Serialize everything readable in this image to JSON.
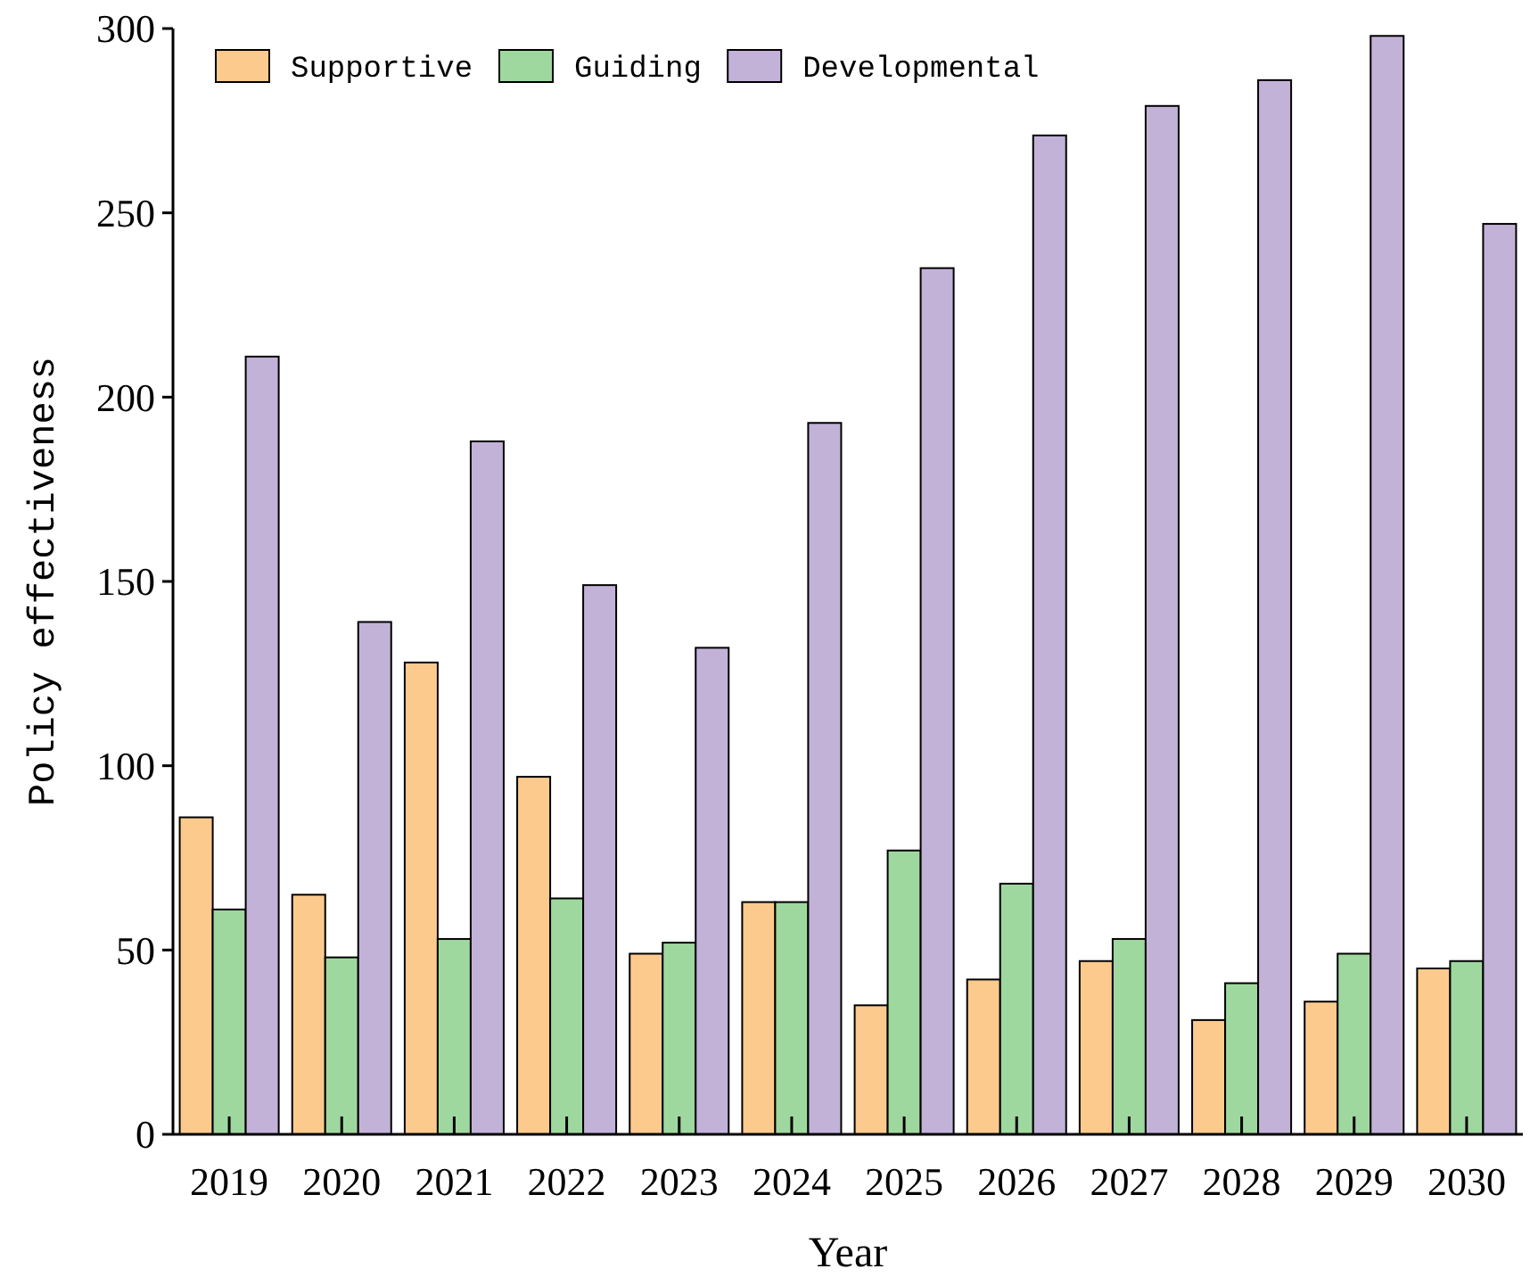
{
  "chart_data": {
    "type": "bar",
    "xlabel": "Year",
    "ylabel": "Policy effectiveness",
    "categories": [
      "2019",
      "2020",
      "2021",
      "2022",
      "2023",
      "2024",
      "2025",
      "2026",
      "2027",
      "2028",
      "2029",
      "2030"
    ],
    "series": [
      {
        "name": "Supportive",
        "color": "#fdca8e",
        "values": [
          86,
          65,
          128,
          97,
          49,
          63,
          35,
          42,
          47,
          31,
          36,
          45
        ]
      },
      {
        "name": "Guiding",
        "color": "#9fd89f",
        "values": [
          61,
          48,
          53,
          64,
          52,
          63,
          77,
          68,
          53,
          41,
          49,
          47
        ]
      },
      {
        "name": "Developmental",
        "color": "#c2b2d8",
        "values": [
          211,
          139,
          188,
          149,
          132,
          193,
          235,
          271,
          279,
          286,
          298,
          247
        ]
      }
    ],
    "ylim": [
      0,
      300
    ],
    "yticks": [
      0,
      50,
      100,
      150,
      200,
      250,
      300
    ],
    "grid": false,
    "legend": "top left"
  }
}
